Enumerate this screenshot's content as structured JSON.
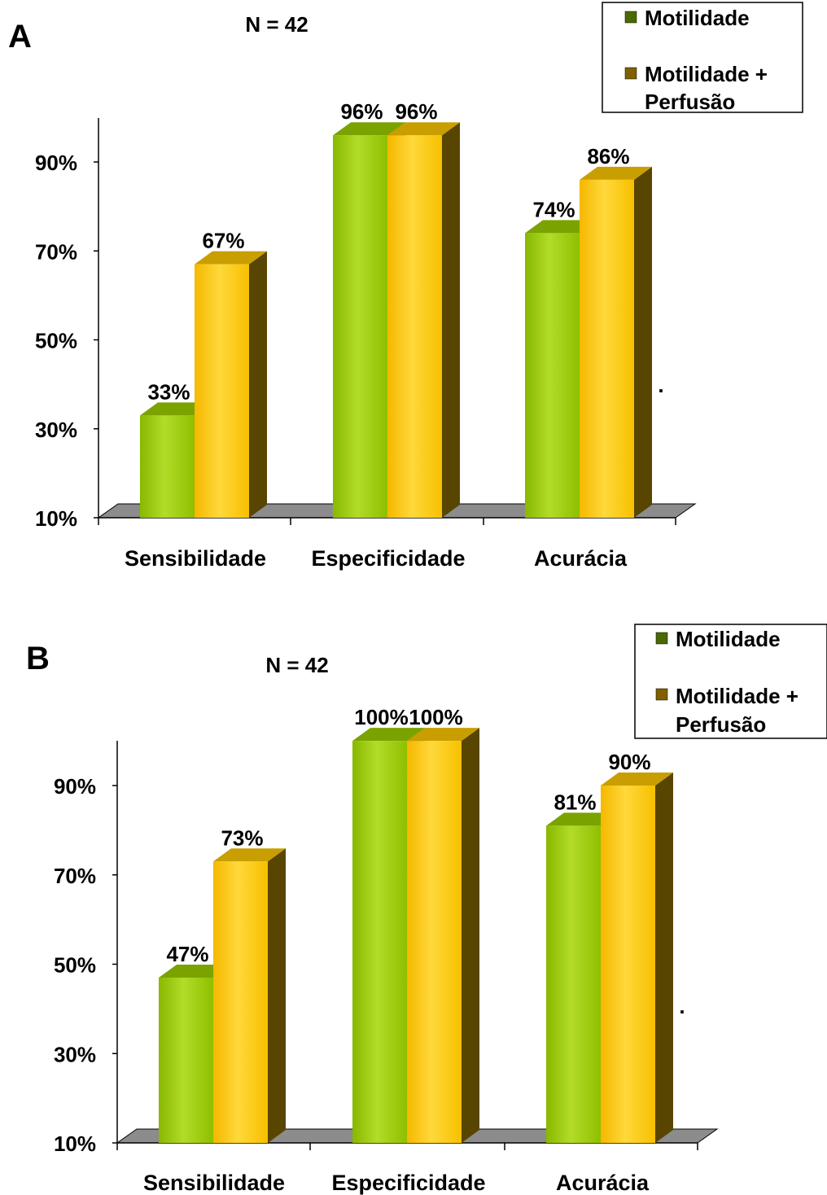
{
  "colors": {
    "green_front": "#99cc00",
    "green_light": "#b9e23a",
    "green_dark": "#5c7f00",
    "green_top": "#7aa300",
    "gold_front": "#ffcc00",
    "gold_light": "#ffdf4d",
    "gold_dark": "#574500",
    "gold_top": "#c99e00",
    "floor": "#8c8c8c",
    "legend_green": "#4a6a00",
    "legend_gold": "#806000"
  },
  "chart_data": [
    {
      "type": "bar",
      "panel": "A",
      "title": "N = 42",
      "categories": [
        "Sensibilidade",
        "Especificidade",
        "Acurácia"
      ],
      "series": [
        {
          "name": "Motilidade",
          "values": [
            33,
            96,
            74
          ],
          "labels": [
            "33%",
            "96%",
            "74%"
          ]
        },
        {
          "name": "Motilidade + Perfusão",
          "values": [
            67,
            96,
            86
          ],
          "labels": [
            "67%",
            "96%",
            "86%"
          ]
        }
      ],
      "ylim": [
        10,
        100
      ],
      "yticks": [
        10,
        30,
        50,
        70,
        90
      ],
      "ytick_labels": [
        "10%",
        "30%",
        "50%",
        "70%",
        "90%"
      ],
      "legend": {
        "position": "top-right",
        "items": [
          {
            "lines": [
              "Motilidade"
            ]
          },
          {
            "lines": [
              "Motilidade +",
              "Perfusão"
            ]
          }
        ]
      },
      "annotation": ".",
      "grid": false
    },
    {
      "type": "bar",
      "panel": "B",
      "title": "N = 42",
      "categories": [
        "Sensibilidade",
        "Especificidade",
        "Acurácia"
      ],
      "series": [
        {
          "name": "Motilidade",
          "values": [
            47,
            100,
            81
          ],
          "labels": [
            "47%",
            "100%",
            "81%"
          ]
        },
        {
          "name": "Motilidade + Perfusão",
          "values": [
            73,
            100,
            90
          ],
          "labels": [
            "73%",
            "100%",
            "90%"
          ]
        }
      ],
      "ylim": [
        10,
        100
      ],
      "yticks": [
        10,
        30,
        50,
        70,
        90
      ],
      "ytick_labels": [
        "10%",
        "30%",
        "50%",
        "70%",
        "90%"
      ],
      "legend": {
        "position": "top-right",
        "items": [
          {
            "lines": [
              "Motilidade"
            ]
          },
          {
            "lines": [
              "Motilidade +",
              "Perfusão"
            ]
          }
        ]
      },
      "annotation": ".",
      "grid": false
    }
  ]
}
